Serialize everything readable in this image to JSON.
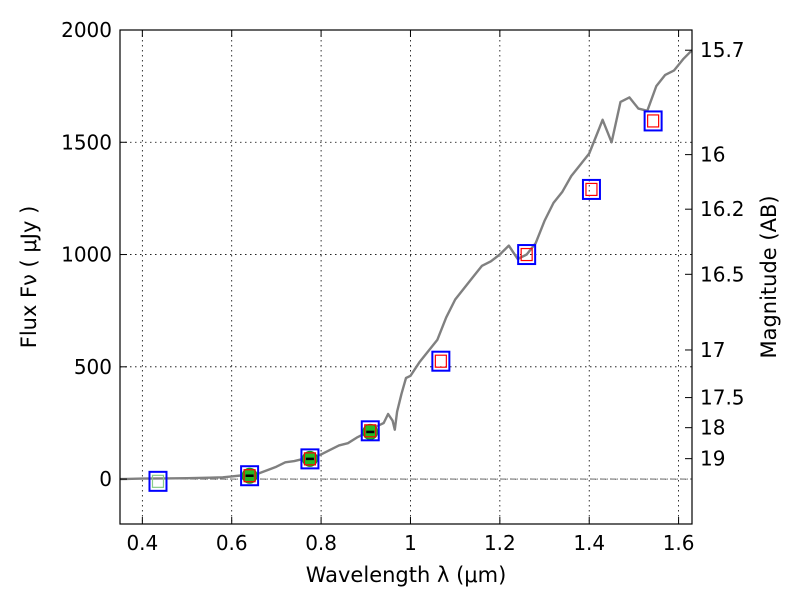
{
  "chart_data": {
    "type": "scatter",
    "xlabel": "Wavelength  λ (μm)",
    "ylabel": "Flux  Fν  ( μJy )",
    "y2label": "Magnitude (AB)",
    "xlim": [
      0.35,
      1.63
    ],
    "ylim": [
      -200,
      2000
    ],
    "x_ticks": [
      0.4,
      0.6,
      0.8,
      1.0,
      1.2,
      1.4,
      1.6
    ],
    "x_tick_labels": [
      "0.4",
      "0.6",
      "0.8",
      "1",
      "1.2",
      "1.4",
      "1.6"
    ],
    "y_ticks": [
      0,
      500,
      1000,
      1500,
      2000
    ],
    "y_tick_labels": [
      "0",
      "500",
      "1000",
      "1500",
      "2000"
    ],
    "y2_ticks": [
      {
        "label": "15.7",
        "flux": 1910
      },
      {
        "label": "16",
        "flux": 1445
      },
      {
        "label": "16.2",
        "flux": 1202
      },
      {
        "label": "16.5",
        "flux": 912
      },
      {
        "label": "17",
        "flux": 575
      },
      {
        "label": "17.5",
        "flux": 363
      },
      {
        "label": "18",
        "flux": 229
      },
      {
        "label": "19",
        "flux": 91
      }
    ],
    "grid": true,
    "zero_line": true,
    "colors": {
      "spectrum": "#808080",
      "observed_marker": "#22bb22",
      "model_box": "#0000ff",
      "synthetic_box": "#ff0000",
      "synthetic_box_light": "#88cc88"
    },
    "series": [
      {
        "marker": "green-filled-circle",
        "x": [
          0.64,
          0.775,
          0.91
        ],
        "y": [
          15,
          90,
          210
        ]
      },
      {
        "marker": "blue-open-square",
        "x": [
          0.435,
          0.64,
          0.775,
          0.91,
          1.068,
          1.26,
          1.405,
          1.543
        ],
        "y": [
          -10,
          15,
          90,
          215,
          525,
          1000,
          1290,
          1595
        ]
      },
      {
        "marker": "inner-open-square",
        "x": [
          0.435,
          0.64,
          0.775,
          0.91,
          1.068,
          1.26,
          1.405,
          1.543
        ],
        "y": [
          -10,
          15,
          90,
          215,
          525,
          1000,
          1290,
          1595
        ]
      },
      {
        "marker": "gray-line",
        "x": [
          0.35,
          0.4,
          0.45,
          0.5,
          0.55,
          0.58,
          0.6,
          0.62,
          0.64,
          0.66,
          0.68,
          0.7,
          0.72,
          0.74,
          0.76,
          0.78,
          0.8,
          0.82,
          0.84,
          0.86,
          0.88,
          0.9,
          0.92,
          0.94,
          0.95,
          0.96,
          0.965,
          0.97,
          0.98,
          0.99,
          1.0,
          1.02,
          1.04,
          1.06,
          1.08,
          1.1,
          1.12,
          1.14,
          1.16,
          1.18,
          1.2,
          1.22,
          1.24,
          1.26,
          1.28,
          1.3,
          1.32,
          1.34,
          1.36,
          1.38,
          1.4,
          1.42,
          1.43,
          1.45,
          1.47,
          1.49,
          1.51,
          1.53,
          1.55,
          1.57,
          1.59,
          1.61,
          1.63
        ],
        "y": [
          0,
          2,
          3,
          4,
          6,
          8,
          12,
          16,
          18,
          25,
          40,
          55,
          75,
          80,
          90,
          95,
          110,
          130,
          150,
          160,
          185,
          205,
          230,
          250,
          290,
          260,
          220,
          300,
          380,
          450,
          460,
          520,
          570,
          620,
          720,
          800,
          850,
          900,
          950,
          970,
          1000,
          1040,
          980,
          1000,
          1050,
          1150,
          1230,
          1280,
          1350,
          1400,
          1450,
          1550,
          1600,
          1500,
          1680,
          1700,
          1650,
          1640,
          1750,
          1800,
          1820,
          1870,
          1910
        ]
      }
    ]
  }
}
